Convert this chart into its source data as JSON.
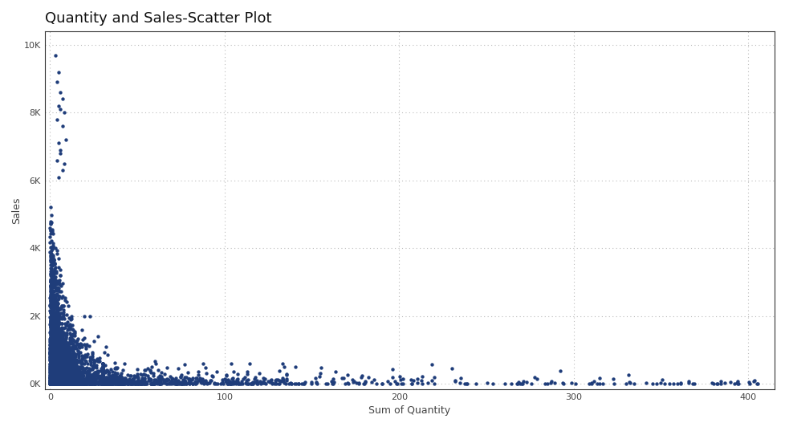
{
  "title": "Quantity and Sales-Scatter Plot",
  "xlabel": "Sum of Quantity",
  "ylabel": "Sales",
  "xlim": [
    -3,
    415
  ],
  "ylim": [
    -150,
    10400
  ],
  "xticks": [
    0,
    100,
    200,
    300,
    400
  ],
  "yticks": [
    0,
    2000,
    4000,
    6000,
    8000,
    10000
  ],
  "ytick_labels": [
    "0K",
    "2K",
    "4K",
    "6K",
    "8K",
    "10K"
  ],
  "xtick_labels": [
    "0",
    "100",
    "200",
    "300",
    "400"
  ],
  "dot_color": "#1f3d7a",
  "background_color": "#ffffff",
  "grid_color": "#bbbbbb",
  "border_color": "#333333",
  "title_fontsize": 13,
  "axis_label_fontsize": 9,
  "tick_fontsize": 8,
  "dot_size": 10,
  "seed": 99,
  "n_main": 3000,
  "n_sparse": 400
}
